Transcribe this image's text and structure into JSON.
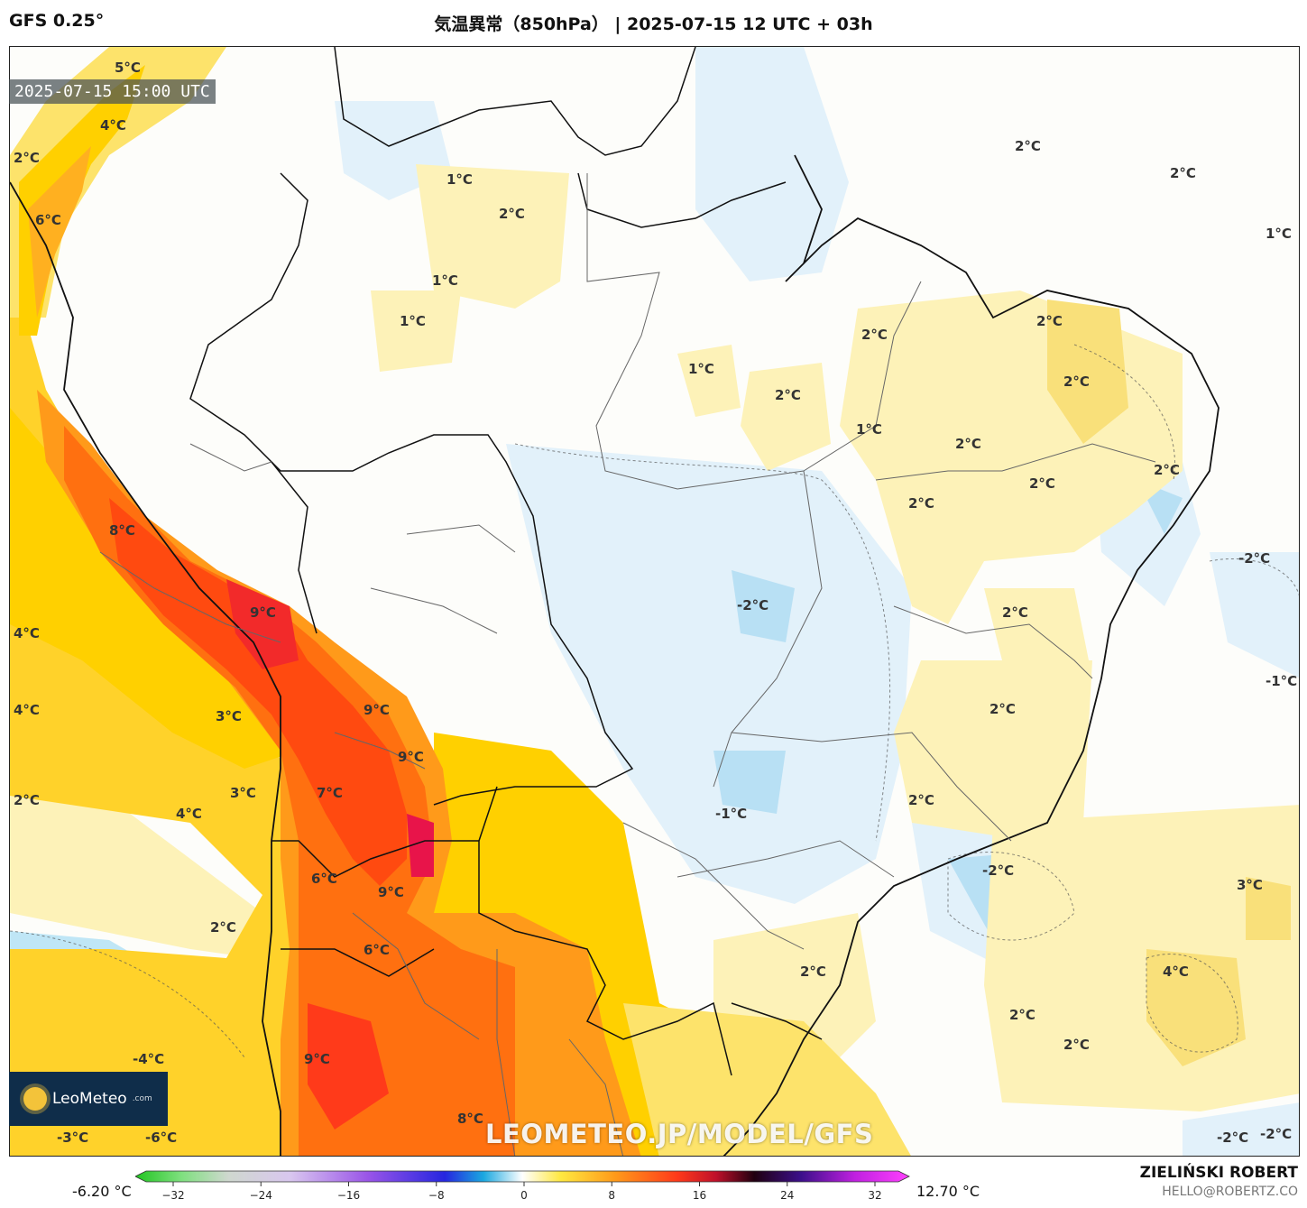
{
  "header": {
    "model": "GFS 0.25°",
    "title": "気温異常（850hPa） | 2025-07-15 12 UTC + 03h"
  },
  "map": {
    "valid_time": "2025-07-15 15:00 UTC",
    "watermark": "LEOMETEO.JP/MODEL/GFS",
    "logo": {
      "text": "LeoMeteo",
      "suffix": ".com"
    },
    "labels": [
      {
        "text": "5°C"
      },
      {
        "text": "4°C"
      },
      {
        "text": "2°C"
      },
      {
        "text": "6°C"
      },
      {
        "text": "1°C"
      },
      {
        "text": "2°C"
      },
      {
        "text": "1°C"
      },
      {
        "text": "1°C"
      },
      {
        "text": "2°C"
      },
      {
        "text": "2°C"
      },
      {
        "text": "1°C"
      },
      {
        "text": "2°C"
      },
      {
        "text": "2°C"
      },
      {
        "text": "2°C"
      },
      {
        "text": "1°C"
      },
      {
        "text": "1°C"
      },
      {
        "text": "2°C"
      },
      {
        "text": "2°C"
      },
      {
        "text": "2°C"
      },
      {
        "text": "2°C"
      },
      {
        "text": "2°C"
      },
      {
        "text": "-2°C"
      },
      {
        "text": "8°C"
      },
      {
        "text": "9°C"
      },
      {
        "text": "4°C"
      },
      {
        "text": "-2°C"
      },
      {
        "text": "2°C"
      },
      {
        "text": "-1°C"
      },
      {
        "text": "4°C"
      },
      {
        "text": "3°C"
      },
      {
        "text": "9°C"
      },
      {
        "text": "9°C"
      },
      {
        "text": "2°C"
      },
      {
        "text": "3°C"
      },
      {
        "text": "7°C"
      },
      {
        "text": "4°C"
      },
      {
        "text": "-1°C"
      },
      {
        "text": "2°C"
      },
      {
        "text": "6°C"
      },
      {
        "text": "9°C"
      },
      {
        "text": "-2°C"
      },
      {
        "text": "3°C"
      },
      {
        "text": "2°C"
      },
      {
        "text": "6°C"
      },
      {
        "text": "2°C"
      },
      {
        "text": "4°C"
      },
      {
        "text": "-4°C"
      },
      {
        "text": "9°C"
      },
      {
        "text": "2°C"
      },
      {
        "text": "2°C"
      },
      {
        "text": "2°C"
      },
      {
        "text": "-3°C"
      },
      {
        "text": "-6°C"
      },
      {
        "text": "8°C"
      },
      {
        "text": "-2°C"
      },
      {
        "text": "-2°C"
      }
    ]
  },
  "colorbar": {
    "min_label": "-6.20 °C",
    "max_label": "12.70 °C",
    "ticks": [
      "−32",
      "−24",
      "−16",
      "−8",
      "0",
      "8",
      "16",
      "24",
      "32"
    ]
  },
  "credits": {
    "author": "ZIELIŃSKI ROBERT",
    "email": "HELLO@ROBERTZ.CO"
  }
}
